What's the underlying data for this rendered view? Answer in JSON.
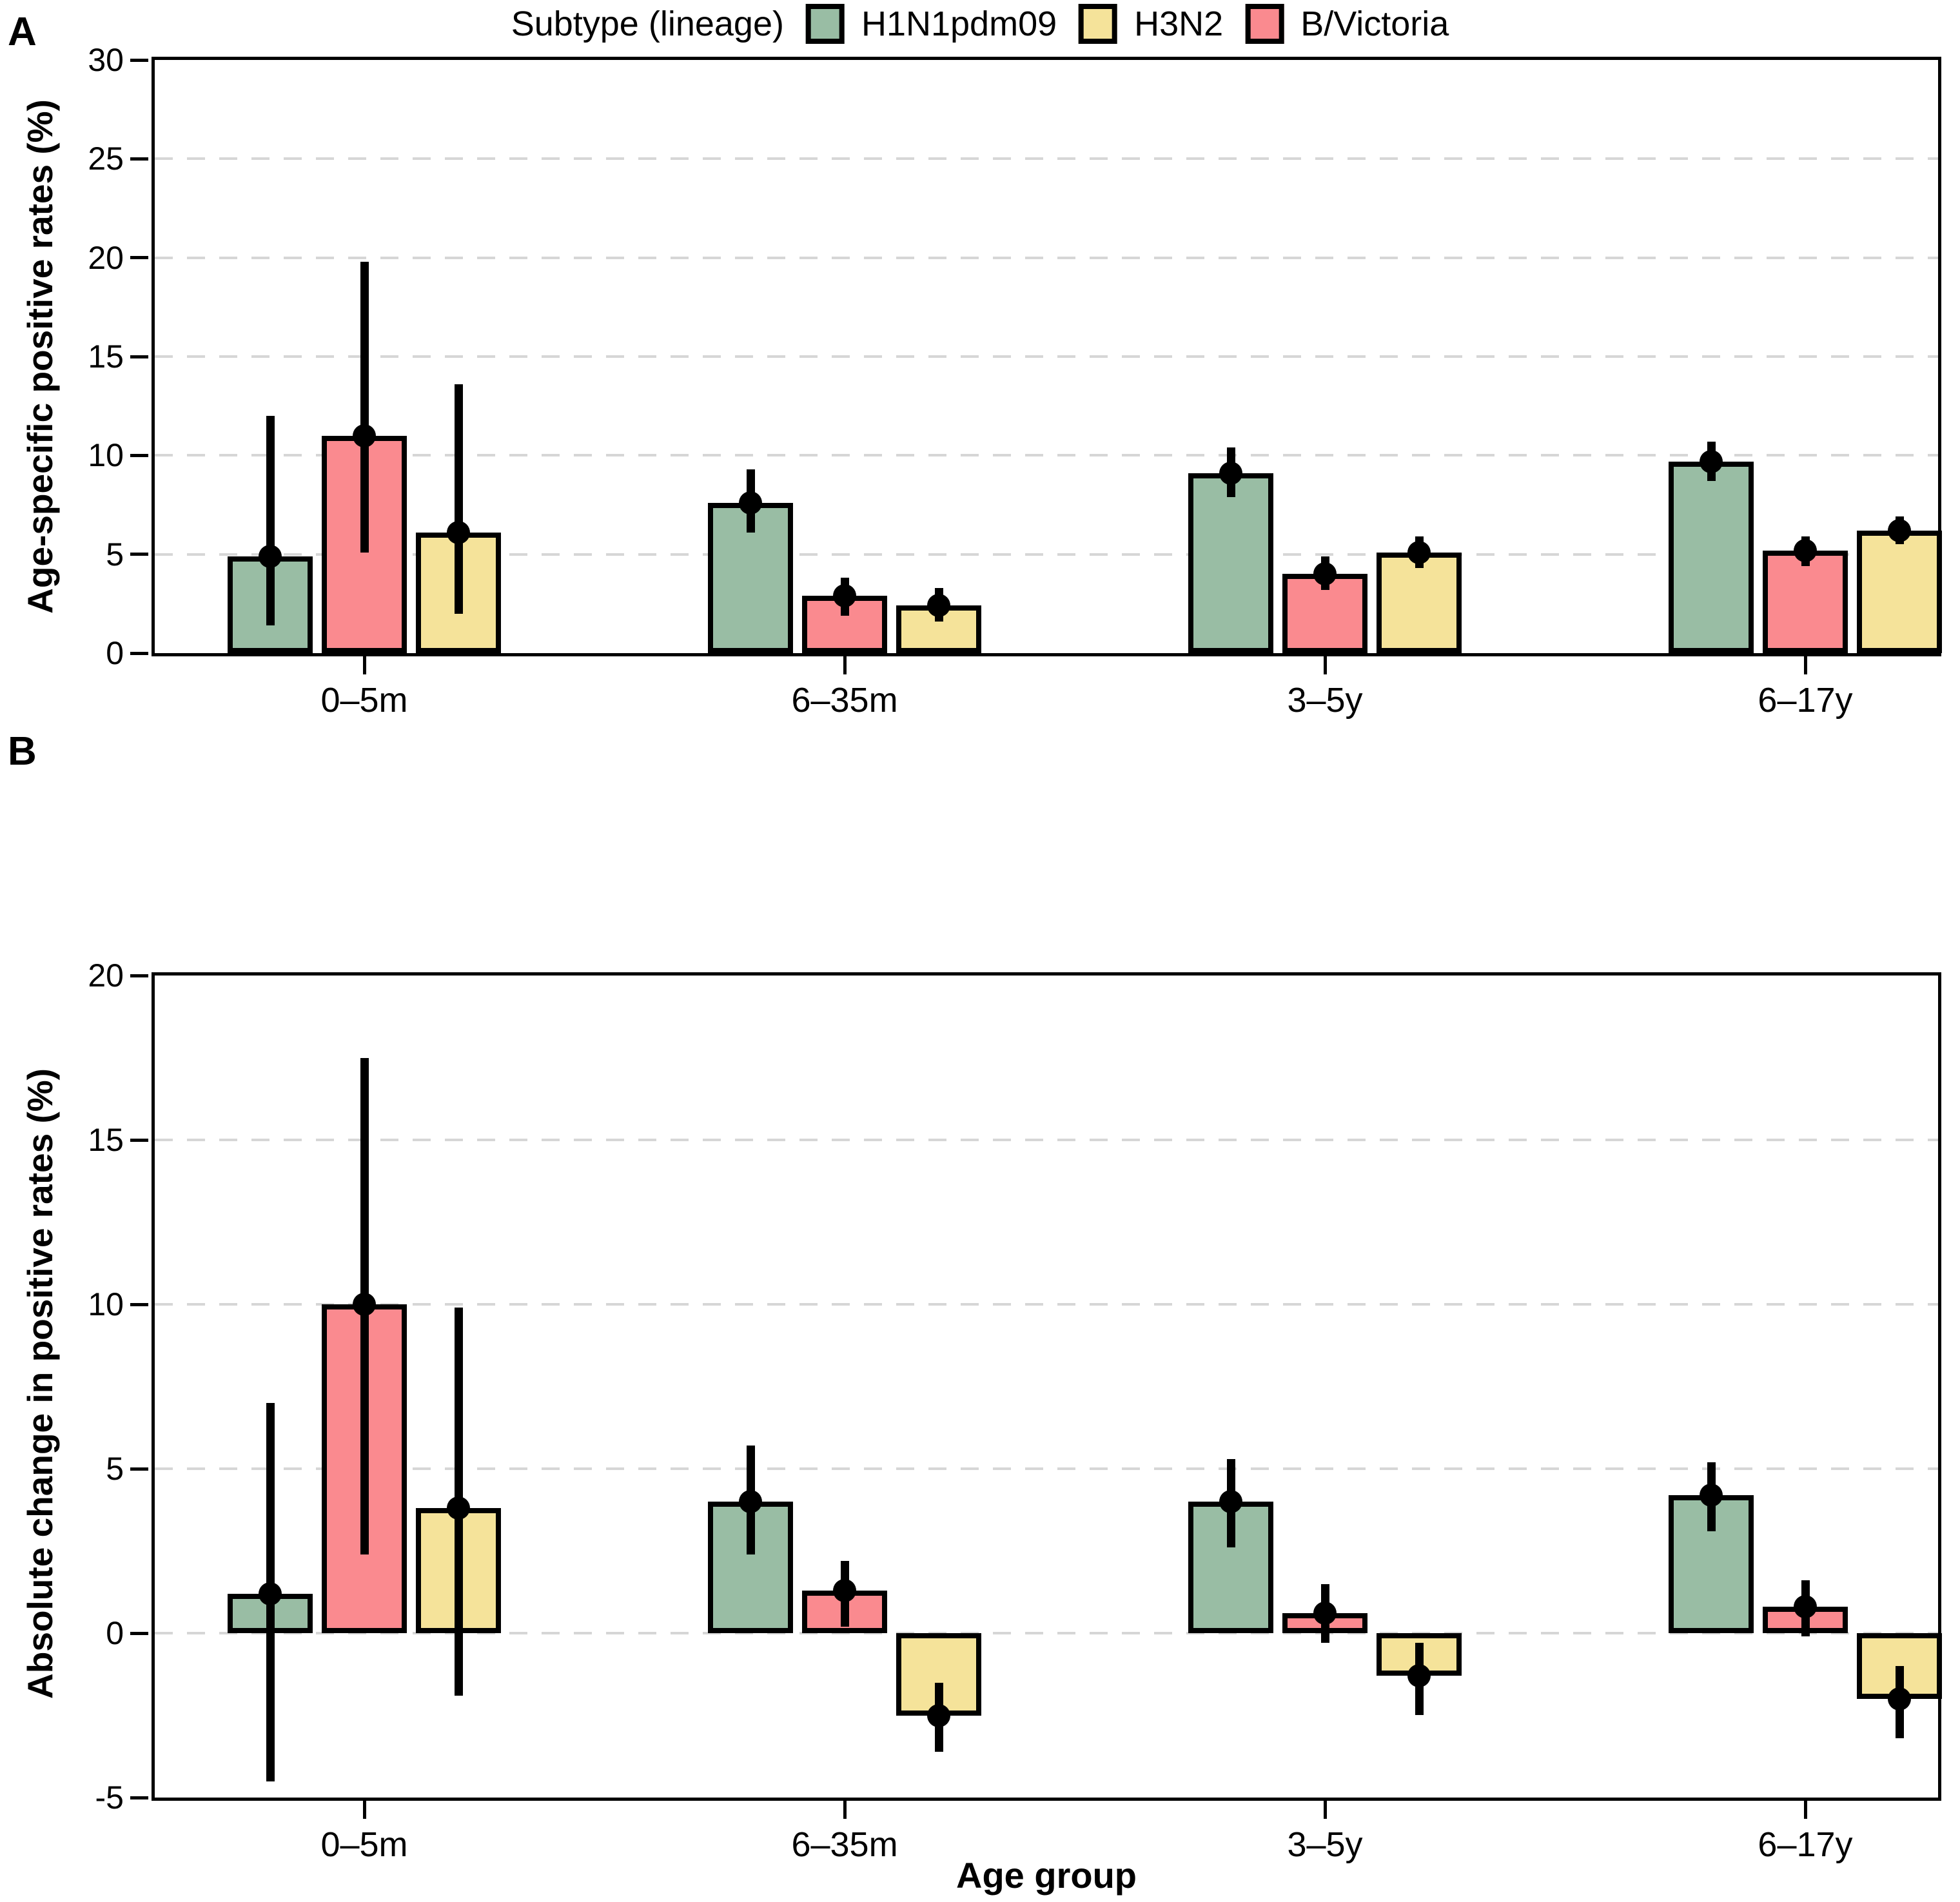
{
  "figure": {
    "background": "#ffffff"
  },
  "legend": {
    "title": "Subtype (lineage)",
    "items": [
      {
        "label": "H1N1pdm09",
        "color": "#99bda4"
      },
      {
        "label": "H3N2",
        "color": "#f5e39a"
      },
      {
        "label": "B/Victoria",
        "color": "#fa8a8f"
      }
    ]
  },
  "colors": {
    "h1n1pdm09": "#99bda4",
    "h3n2": "#f5e39a",
    "b_victoria": "#fa8a8f",
    "gridline": "#d6d6d6",
    "axis": "#000000"
  },
  "x_axis_title": "Age group",
  "chart_data": [
    {
      "type": "bar",
      "panel": "A",
      "ylabel": "Age-specific positive rates (%)",
      "xlabel": "",
      "categories": [
        "0–5m",
        "6–35m",
        "3–5y",
        "6–17y"
      ],
      "ylim": [
        0,
        30
      ],
      "yticks": [
        0,
        5,
        10,
        15,
        20,
        25,
        30
      ],
      "grid": "dashed-horizontal",
      "legend_position": "top",
      "bar_order_note": "bars left-to-right within each group: H1N1pdm09, B/Victoria, H3N2",
      "series": [
        {
          "name": "H1N1pdm09",
          "color": "#99bda4",
          "values": [
            4.9,
            7.6,
            9.1,
            9.7
          ],
          "ci_low": [
            1.4,
            6.1,
            7.9,
            8.7
          ],
          "ci_high": [
            12.0,
            9.3,
            10.4,
            10.7
          ]
        },
        {
          "name": "B/Victoria",
          "color": "#fa8a8f",
          "values": [
            11.0,
            2.9,
            4.0,
            5.2
          ],
          "ci_low": [
            5.1,
            1.9,
            3.2,
            4.4
          ],
          "ci_high": [
            19.8,
            3.8,
            4.9,
            5.9
          ]
        },
        {
          "name": "H3N2",
          "color": "#f5e39a",
          "values": [
            6.1,
            2.4,
            5.1,
            6.2
          ],
          "ci_low": [
            2.0,
            1.6,
            4.3,
            5.5
          ],
          "ci_high": [
            13.6,
            3.3,
            5.9,
            6.9
          ]
        }
      ]
    },
    {
      "type": "bar",
      "panel": "B",
      "ylabel": "Absolute change in positive rates (%)",
      "xlabel": "Age group",
      "categories": [
        "0–5m",
        "6–35m",
        "3–5y",
        "6–17y"
      ],
      "ylim": [
        -5,
        20
      ],
      "yticks": [
        -5,
        0,
        5,
        10,
        15,
        20
      ],
      "grid": "dashed-horizontal",
      "bar_order_note": "bars left-to-right within each group: H1N1pdm09, B/Victoria, H3N2",
      "series": [
        {
          "name": "H1N1pdm09",
          "color": "#99bda4",
          "values": [
            1.2,
            4.0,
            4.0,
            4.2
          ],
          "ci_low": [
            -4.5,
            2.4,
            2.6,
            3.1
          ],
          "ci_high": [
            7.0,
            5.7,
            5.3,
            5.2
          ]
        },
        {
          "name": "B/Victoria",
          "color": "#fa8a8f",
          "values": [
            10.0,
            1.3,
            0.6,
            0.8
          ],
          "ci_low": [
            2.4,
            0.2,
            -0.3,
            -0.1
          ],
          "ci_high": [
            17.5,
            2.2,
            1.5,
            1.6
          ]
        },
        {
          "name": "H3N2",
          "color": "#f5e39a",
          "values": [
            3.8,
            -2.5,
            -1.3,
            -2.0
          ],
          "ci_low": [
            -1.9,
            -3.6,
            -2.5,
            -3.2
          ],
          "ci_high": [
            9.9,
            -1.5,
            -0.3,
            -1.0
          ]
        }
      ]
    }
  ]
}
